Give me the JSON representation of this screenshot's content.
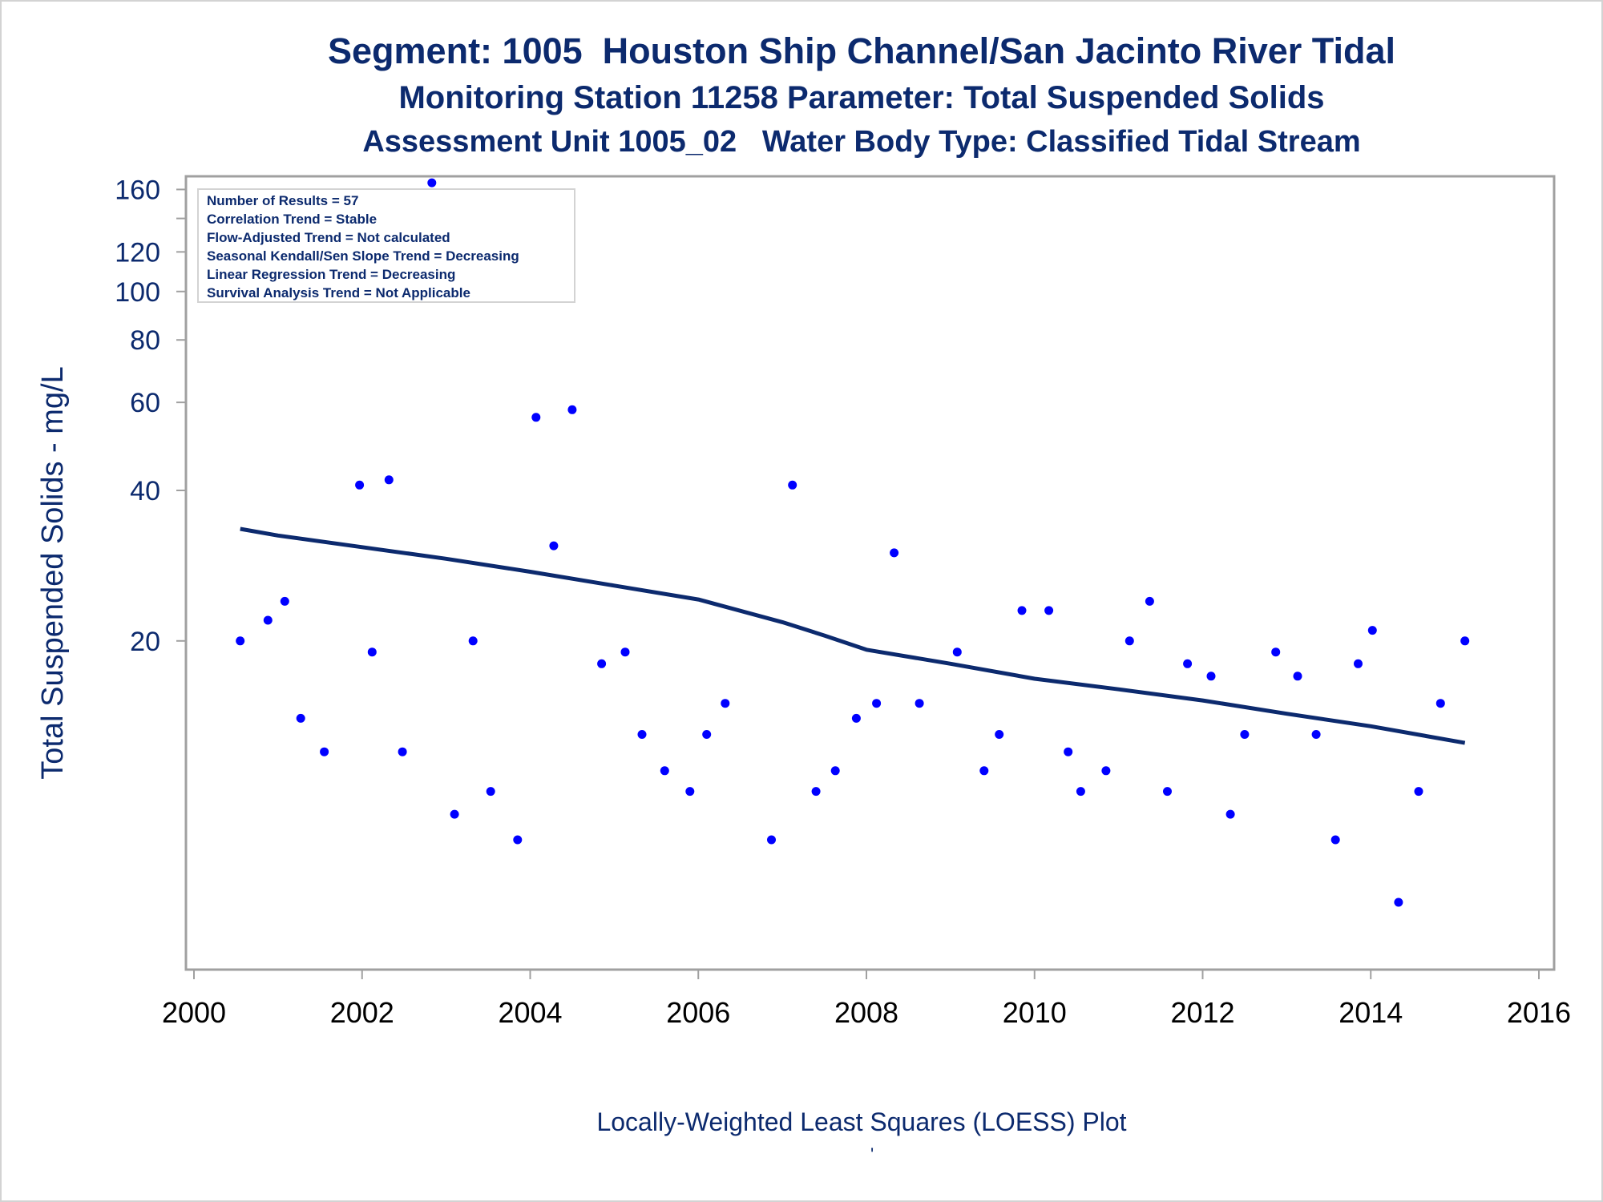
{
  "title_line1": "Segment: 1005  Houston Ship Channel/San Jacinto River Tidal",
  "title_line2": "Monitoring Station 11258 Parameter: Total Suspended Solids",
  "title_line3": "Assessment Unit 1005_02   Water Body Type: Classified Tidal Stream",
  "footnote": "Locally-Weighted Least Squares (LOESS) Plot",
  "footnote_mark": "'",
  "stats": [
    "Number of Results = 57",
    "Correlation Trend = Stable",
    "Flow-Adjusted Trend = Not calculated",
    "Seasonal Kendall/Sen Slope Trend = Decreasing",
    "Linear Regression Trend = Decreasing",
    "Survival Analysis Trend = Not Applicable"
  ],
  "colors": {
    "text": "#0c2a6e",
    "points": "#0000ff",
    "line": "#0c2a6e",
    "axis": "#a0a0a0"
  },
  "chart_data": {
    "type": "scatter",
    "ylabel": "Total Suspended Solids - mg/L",
    "xlabel": "",
    "y_scale": "log",
    "xlim": [
      2000,
      2016
    ],
    "ylim": [
      4.4,
      170
    ],
    "x_ticks": [
      2000,
      2002,
      2004,
      2006,
      2008,
      2010,
      2012,
      2014,
      2016
    ],
    "y_ticks": [
      20,
      40,
      60,
      80,
      100,
      120,
      160
    ],
    "y_minor_ticks": [
      140
    ],
    "grid": false,
    "series": [
      {
        "kind": "points",
        "x": [
          2000.55,
          2000.88,
          2001.08,
          2001.27,
          2001.55,
          2001.97,
          2002.12,
          2002.32,
          2002.48,
          2002.83,
          2003.1,
          2003.32,
          2003.53,
          2003.85,
          2004.07,
          2004.28,
          2004.5,
          2004.85,
          2005.13,
          2005.33,
          2005.6,
          2005.9,
          2006.1,
          2006.32,
          2006.87,
          2007.12,
          2007.4,
          2007.63,
          2007.88,
          2008.12,
          2008.33,
          2008.63,
          2009.08,
          2009.4,
          2009.58,
          2009.85,
          2010.17,
          2010.4,
          2010.55,
          2010.85,
          2011.13,
          2011.37,
          2011.58,
          2011.82,
          2012.1,
          2012.33,
          2012.5,
          2012.87,
          2013.13,
          2013.35,
          2013.58,
          2013.85,
          2014.02,
          2014.33,
          2014.57,
          2014.83,
          2015.12
        ],
        "y": [
          20,
          22,
          24,
          14,
          12,
          41,
          19,
          42,
          12,
          165,
          9,
          20,
          10,
          8,
          56,
          31,
          58,
          18,
          19,
          13,
          11,
          10,
          13,
          15,
          8,
          41,
          10,
          11,
          14,
          15,
          30,
          15,
          19,
          11,
          13,
          23,
          23,
          12,
          10,
          11,
          20,
          24,
          10,
          18,
          17,
          9,
          13,
          19,
          17,
          13,
          8,
          18,
          21,
          6,
          10,
          15,
          20
        ]
      },
      {
        "kind": "loess",
        "x": [
          2000.55,
          2001,
          2002,
          2003,
          2004,
          2005,
          2006,
          2007,
          2007.5,
          2008,
          2009,
          2010,
          2011,
          2012,
          2013,
          2014,
          2015.12
        ],
        "y": [
          33.5,
          32.5,
          30.8,
          29.2,
          27.5,
          25.8,
          24.2,
          21.8,
          20.5,
          19.2,
          18,
          16.8,
          16,
          15.2,
          14.3,
          13.5,
          12.5
        ]
      }
    ]
  }
}
